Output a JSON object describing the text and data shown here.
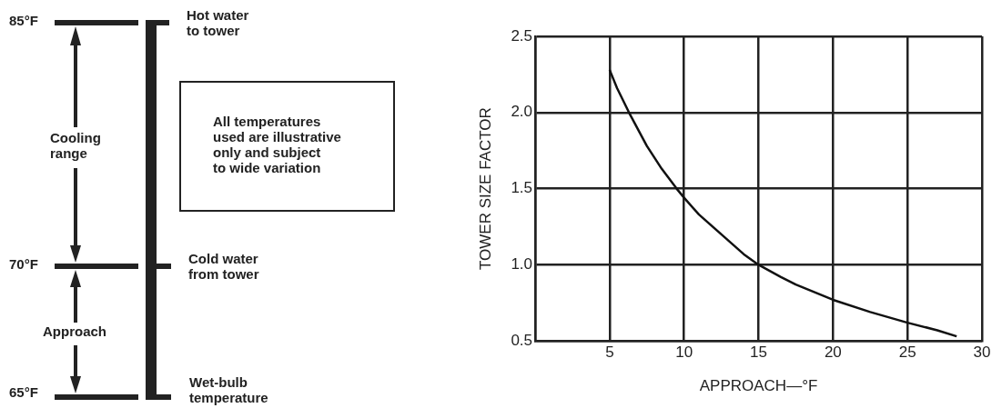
{
  "chart_data": [
    {
      "type": "other",
      "annotations": [
        "85°F",
        "Hot water\nto tower",
        "Cooling\nrange",
        "All temperatures\nused are illustrative\nonly and subject\nto wide variation",
        "70°F",
        "Cold water\nfrom tower",
        "Approach",
        "65°F",
        "Wet-bulb\ntemperature"
      ]
    },
    {
      "type": "line",
      "xlabel": "APPROACH—°F",
      "ylabel": "TOWER SIZE FACTOR",
      "series": [
        {
          "color": "#111111",
          "x": [
            5,
            5.5,
            6.3,
            7.5,
            8.5,
            9.5,
            10,
            11,
            12.5,
            14,
            15,
            16.5,
            17.5,
            20,
            22.5,
            25,
            27,
            28.3
          ],
          "values": [
            2.28,
            2.16,
            2.0,
            1.78,
            1.63,
            1.5,
            1.44,
            1.33,
            1.2,
            1.07,
            1.0,
            0.92,
            0.87,
            0.77,
            0.69,
            0.62,
            0.57,
            0.53
          ]
        }
      ],
      "xlim": [
        0,
        30
      ],
      "xticks": [
        {
          "value": 0,
          "label": null
        },
        5,
        10,
        15,
        20,
        25,
        30
      ],
      "ylim": [
        0.5,
        2.5
      ],
      "yticks": [
        {
          "value": 0.5,
          "label": "0.5"
        },
        {
          "value": 1,
          "label": "1.0"
        },
        1.5,
        {
          "value": 2,
          "label": "2.0"
        },
        2.5
      ],
      "grid": true,
      "legend": false,
      "marker": "none",
      "line_style": "solid"
    }
  ]
}
